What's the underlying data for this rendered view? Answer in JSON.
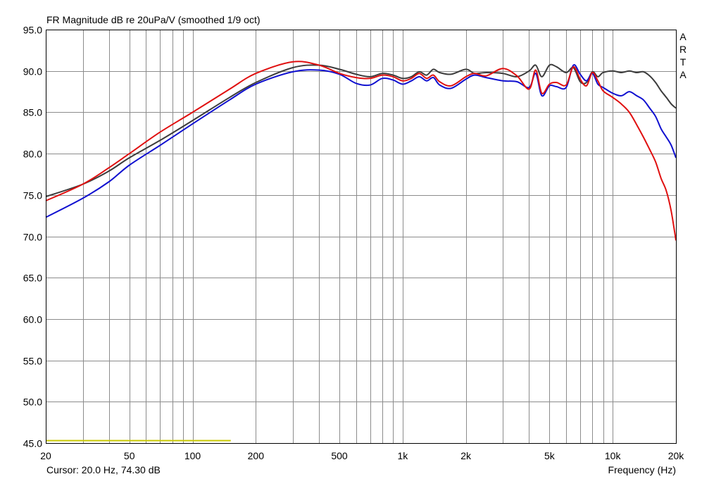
{
  "chart_data": {
    "type": "line",
    "title": "FR Magnitude dB re 20uPa/V (smoothed 1/9 oct)",
    "xlabel": "Frequency (Hz)",
    "ylabel": "",
    "xscale": "log",
    "xlim": [
      20,
      20000
    ],
    "ylim": [
      45,
      95
    ],
    "grid": true,
    "legend": "none",
    "x_ticks": [
      {
        "value": 20,
        "label": "20"
      },
      {
        "value": 50,
        "label": "50"
      },
      {
        "value": 100,
        "label": "100"
      },
      {
        "value": 200,
        "label": "200"
      },
      {
        "value": 500,
        "label": "500"
      },
      {
        "value": 1000,
        "label": "1k"
      },
      {
        "value": 2000,
        "label": "2k"
      },
      {
        "value": 5000,
        "label": "5k"
      },
      {
        "value": 10000,
        "label": "10k"
      },
      {
        "value": 20000,
        "label": "20k"
      }
    ],
    "y_ticks": [
      {
        "value": 95,
        "label": "95.0"
      },
      {
        "value": 90,
        "label": "90.0"
      },
      {
        "value": 85,
        "label": "85.0"
      },
      {
        "value": 80,
        "label": "80.0"
      },
      {
        "value": 75,
        "label": "75.0"
      },
      {
        "value": 70,
        "label": "70.0"
      },
      {
        "value": 65,
        "label": "65.0"
      },
      {
        "value": 60,
        "label": "60.0"
      },
      {
        "value": 55,
        "label": "55.0"
      },
      {
        "value": 50,
        "label": "50.0"
      },
      {
        "value": 45,
        "label": "45.0"
      }
    ],
    "series": [
      {
        "color": "#3c3c3c",
        "x": [
          20,
          30,
          40,
          50,
          70,
          100,
          150,
          200,
          300,
          400,
          500,
          600,
          700,
          800,
          900,
          1000,
          1100,
          1200,
          1300,
          1400,
          1500,
          1700,
          2000,
          2200,
          2500,
          3000,
          3500,
          4000,
          4300,
          4600,
          5000,
          5400,
          6000,
          6500,
          7000,
          7500,
          8000,
          8500,
          9000,
          10000,
          11000,
          12000,
          13000,
          14000,
          15000,
          16000,
          17000,
          18000,
          19000,
          20000
        ],
        "y": [
          74.8,
          76.3,
          77.9,
          79.5,
          81.6,
          84.0,
          86.8,
          88.6,
          90.4,
          90.7,
          90.2,
          89.6,
          89.3,
          89.7,
          89.5,
          89.1,
          89.3,
          89.9,
          89.5,
          90.2,
          89.8,
          89.6,
          90.2,
          89.7,
          89.8,
          89.7,
          89.3,
          90.0,
          90.7,
          89.3,
          90.7,
          90.5,
          89.8,
          90.4,
          88.7,
          88.6,
          89.9,
          89.3,
          89.8,
          90.0,
          89.8,
          90.0,
          89.8,
          89.9,
          89.4,
          88.6,
          87.6,
          86.8,
          86.0,
          85.5
        ]
      },
      {
        "color": "#1010d0",
        "x": [
          20,
          30,
          40,
          50,
          70,
          100,
          150,
          200,
          300,
          400,
          500,
          600,
          700,
          800,
          900,
          1000,
          1100,
          1200,
          1300,
          1400,
          1500,
          1700,
          2000,
          2200,
          2500,
          3000,
          3500,
          4000,
          4300,
          4600,
          5000,
          5400,
          6000,
          6500,
          7000,
          7500,
          8000,
          8500,
          9000,
          10000,
          11000,
          12000,
          13000,
          14000,
          15000,
          16000,
          17000,
          18000,
          19000,
          20000
        ],
        "y": [
          72.3,
          74.6,
          76.6,
          78.6,
          81.0,
          83.6,
          86.5,
          88.4,
          89.9,
          90.1,
          89.6,
          88.5,
          88.3,
          89.1,
          88.9,
          88.4,
          88.8,
          89.3,
          88.8,
          89.2,
          88.3,
          87.9,
          89.0,
          89.5,
          89.2,
          88.8,
          88.7,
          88.0,
          89.7,
          87.0,
          88.2,
          88.1,
          88.0,
          90.7,
          89.6,
          88.8,
          89.7,
          88.4,
          88.0,
          87.3,
          87.0,
          87.5,
          87.0,
          86.5,
          85.5,
          84.5,
          83.0,
          82.0,
          81.0,
          79.5
        ]
      },
      {
        "color": "#e01010",
        "x": [
          20,
          30,
          40,
          50,
          70,
          100,
          150,
          200,
          300,
          400,
          500,
          600,
          700,
          800,
          900,
          1000,
          1100,
          1200,
          1300,
          1400,
          1500,
          1700,
          2000,
          2200,
          2500,
          3000,
          3500,
          4000,
          4300,
          4600,
          5000,
          5400,
          6000,
          6500,
          7000,
          7500,
          8000,
          8500,
          9000,
          10000,
          11000,
          12000,
          13000,
          14000,
          15000,
          16000,
          17000,
          18000,
          19000,
          20000
        ],
        "y": [
          74.3,
          76.3,
          78.3,
          80.0,
          82.6,
          85.0,
          87.8,
          89.7,
          91.1,
          90.7,
          89.7,
          89.2,
          89.1,
          89.5,
          89.3,
          88.8,
          89.1,
          89.7,
          89.1,
          89.5,
          88.7,
          88.2,
          89.3,
          89.7,
          89.4,
          90.3,
          89.4,
          87.8,
          90.1,
          87.3,
          88.4,
          88.6,
          88.3,
          90.5,
          89.0,
          88.2,
          89.8,
          88.8,
          87.6,
          86.8,
          86.0,
          85.0,
          83.5,
          82.0,
          80.5,
          79.0,
          77.0,
          75.5,
          73.0,
          69.5
        ]
      }
    ]
  },
  "cursor": {
    "readout": "Cursor: 20.0 Hz, 74.30 dB",
    "color": "#c8c800",
    "line_level": 45.3,
    "line_x_end": 152
  },
  "watermark": [
    "A",
    "R",
    "T",
    "A"
  ]
}
